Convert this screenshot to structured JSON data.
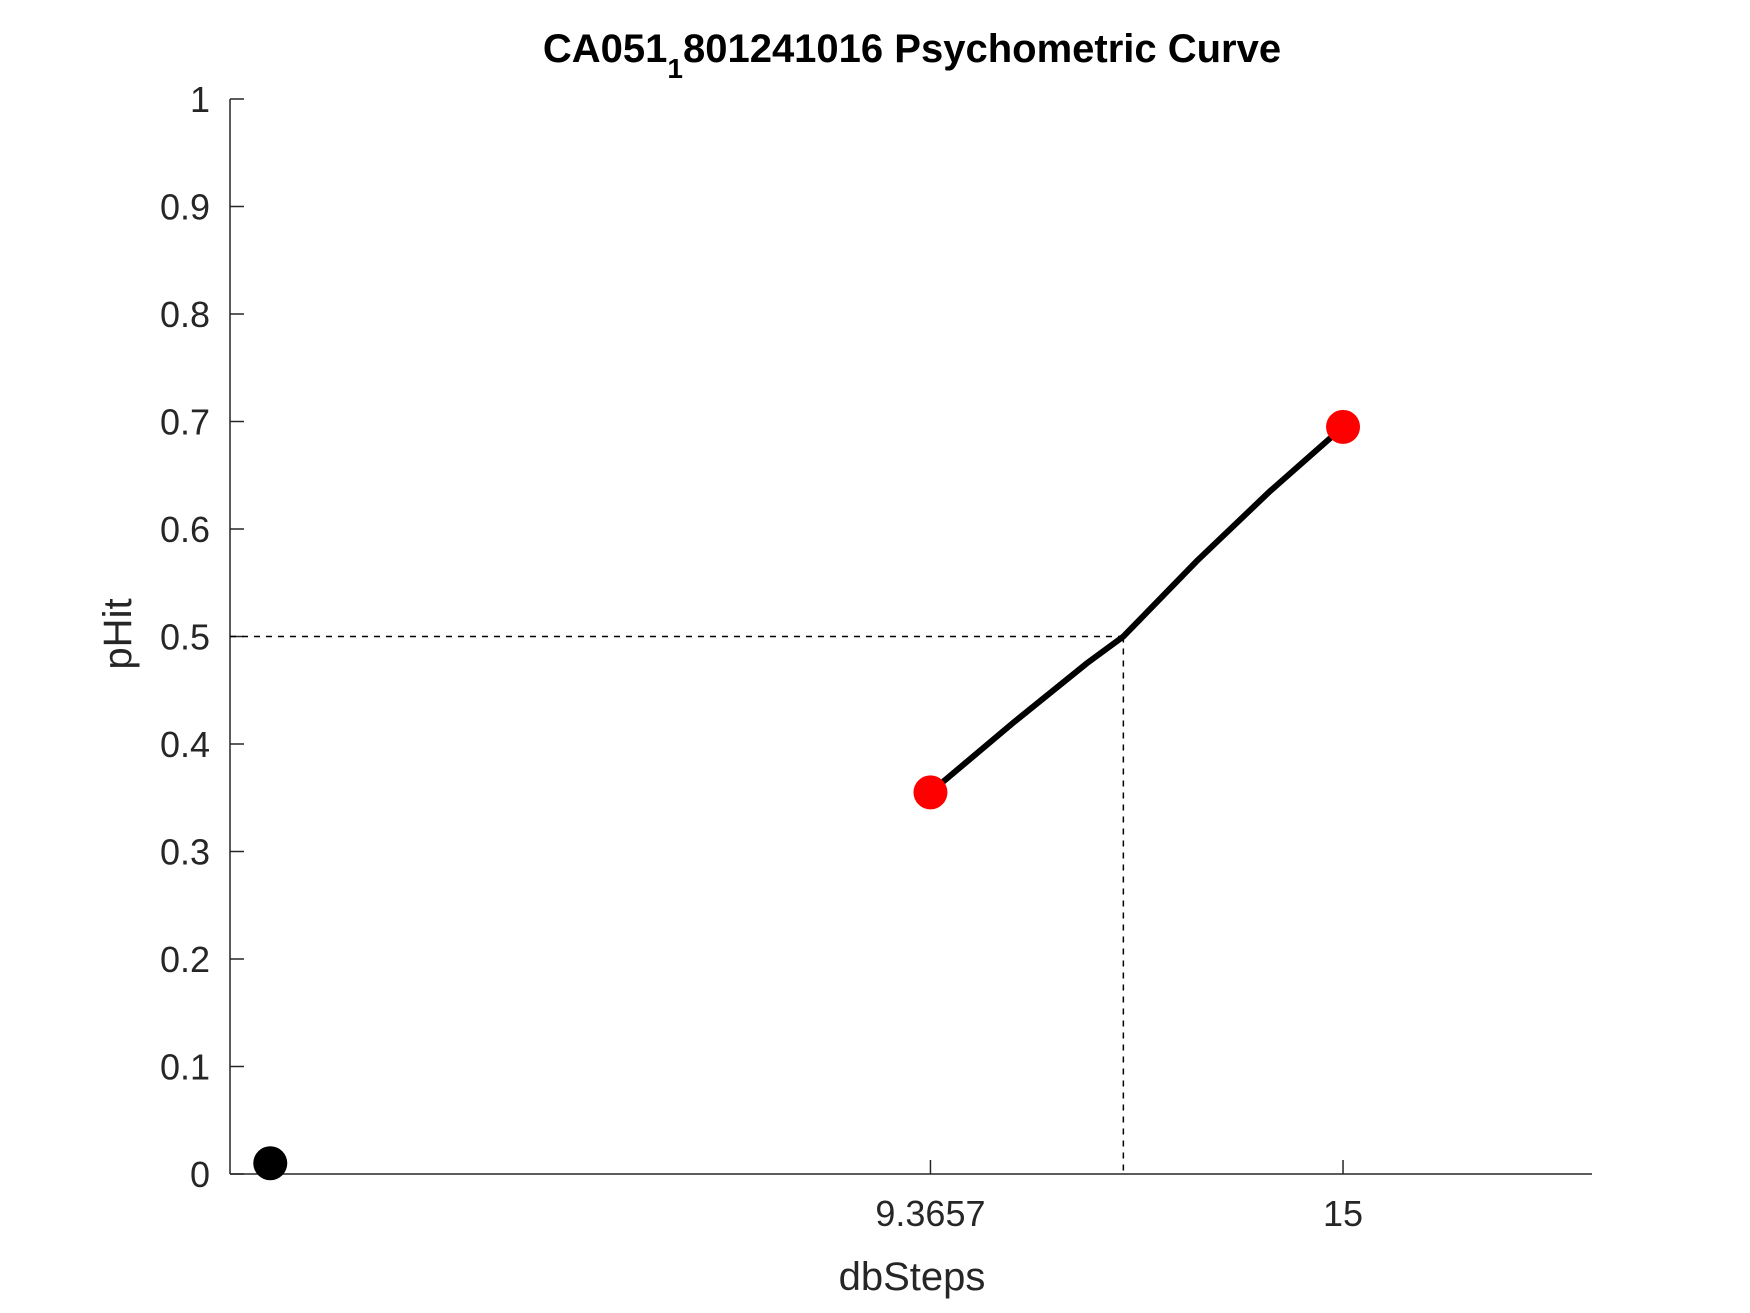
{
  "chart_data": {
    "type": "line",
    "title": {
      "prefix": "CA051",
      "subscript": "1",
      "suffix": "801241016 Psychometric Curve"
    },
    "xlabel": "dbSteps",
    "ylabel": "pHit",
    "xlim": [
      -0.2,
      18.4
    ],
    "ylim": [
      0,
      1
    ],
    "x_ticks": [
      9.3657,
      15
    ],
    "x_tick_labels": [
      "9.3657",
      "15"
    ],
    "y_ticks": [
      0,
      0.1,
      0.2,
      0.3,
      0.4,
      0.5,
      0.6,
      0.7,
      0.8,
      0.9,
      1
    ],
    "y_tick_labels": [
      "0",
      "0.1",
      "0.2",
      "0.3",
      "0.4",
      "0.5",
      "0.6",
      "0.7",
      "0.8",
      "0.9",
      "1"
    ],
    "threshold": {
      "x": 12.0,
      "y": 0.5
    },
    "series": [
      {
        "kind": "fit",
        "color": "#000000",
        "x": [
          9.3657,
          10.5,
          11.5,
          12.0,
          13.0,
          14.0,
          15
        ],
        "y": [
          0.355,
          0.42,
          0.475,
          0.5,
          0.57,
          0.635,
          0.695
        ]
      },
      {
        "kind": "points",
        "color": "#ff0000",
        "x": [
          9.3657,
          15
        ],
        "y": [
          0.355,
          0.695
        ]
      },
      {
        "kind": "points",
        "color": "#000000",
        "x": [
          0.35
        ],
        "y": [
          0.01
        ]
      }
    ],
    "grid": false,
    "legend": "none"
  }
}
